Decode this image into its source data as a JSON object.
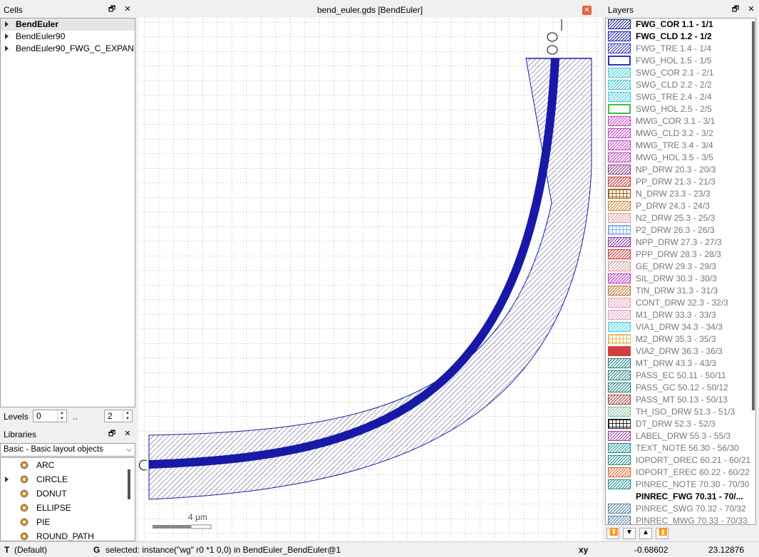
{
  "cells_panel": {
    "title": "Cells",
    "items": [
      {
        "label": "BendEuler",
        "selected": true
      },
      {
        "label": "BendEuler90",
        "selected": false
      },
      {
        "label": "BendEuler90_FWG_C_EXPAN...",
        "selected": false
      }
    ]
  },
  "levels": {
    "label": "Levels",
    "from": "0",
    "separator": "..",
    "to": "2"
  },
  "libraries_panel": {
    "title": "Libraries",
    "dropdown_value": "Basic - Basic layout objects",
    "items": [
      "ARC",
      "CIRCLE",
      "DONUT",
      "ELLIPSE",
      "PIE",
      "ROUND_PATH"
    ]
  },
  "canvas": {
    "title": "bend_euler.gds [BendEuler]",
    "scale_label": "4 μm",
    "accent_color": "#1a1aa6",
    "close_color": "#e8603c"
  },
  "layers_panel": {
    "title": "Layers",
    "layers": [
      {
        "label": "FWG_COR 1.1 - 1/1",
        "bold": true,
        "color": "#1a1a8c",
        "pattern": "diag"
      },
      {
        "label": "FWG_CLD 1.2 - 1/2",
        "bold": true,
        "color": "#2020b0",
        "pattern": "diag"
      },
      {
        "label": "FWG_TRE 1.4 - 1/4",
        "bold": false,
        "color": "#3a3ab0",
        "pattern": "diag"
      },
      {
        "label": "FWG_HOL 1.5 - 1/5",
        "bold": false,
        "color": "#3030c0",
        "pattern": "solid-light"
      },
      {
        "label": "SWG_COR 2.1 - 2/1",
        "bold": false,
        "color": "#40c8d8",
        "pattern": "diag"
      },
      {
        "label": "SWG_CLD 2.2 - 2/2",
        "bold": false,
        "color": "#40c8d8",
        "pattern": "diag"
      },
      {
        "label": "SWG_TRE 2.4 - 2/4",
        "bold": false,
        "color": "#40c8d8",
        "pattern": "diag"
      },
      {
        "label": "SWG_HOL 2.5 - 2/5",
        "bold": false,
        "color": "#40c040",
        "pattern": "solid-light"
      },
      {
        "label": "MWG_COR 3.1 - 3/1",
        "bold": false,
        "color": "#c040c0",
        "pattern": "diag"
      },
      {
        "label": "MWG_CLD 3.2 - 3/2",
        "bold": false,
        "color": "#c040c0",
        "pattern": "diag"
      },
      {
        "label": "MWG_TRE 3.4 - 3/4",
        "bold": false,
        "color": "#c040c0",
        "pattern": "diag"
      },
      {
        "label": "MWG_HOL 3.5 - 3/5",
        "bold": false,
        "color": "#c040c0",
        "pattern": "diag"
      },
      {
        "label": "NP_DRW 20.3 - 20/3",
        "bold": false,
        "color": "#8a3a8a",
        "pattern": "diag"
      },
      {
        "label": "PP_DRW 21.3 - 21/3",
        "bold": false,
        "color": "#c83030",
        "pattern": "diag"
      },
      {
        "label": "N_DRW 23.3 - 23/3",
        "bold": false,
        "color": "#9a6020",
        "pattern": "grid"
      },
      {
        "label": "P_DRW 24.3 - 24/3",
        "bold": false,
        "color": "#d08030",
        "pattern": "diag"
      },
      {
        "label": "N2_DRW 25.3 - 25/3",
        "bold": false,
        "color": "#d8a0a0",
        "pattern": "diag"
      },
      {
        "label": "P2_DRW 26.3 - 26/3",
        "bold": false,
        "color": "#80b0e0",
        "pattern": "grid"
      },
      {
        "label": "NPP_DRW 27.3 - 27/3",
        "bold": false,
        "color": "#8030a0",
        "pattern": "diag"
      },
      {
        "label": "PPP_DRW 28.3 - 28/3",
        "bold": false,
        "color": "#d03030",
        "pattern": "diag"
      },
      {
        "label": "GE_DRW 29.3 - 29/3",
        "bold": false,
        "color": "#d0a0a0",
        "pattern": "diag"
      },
      {
        "label": "SIL_DRW 30.3 - 30/3",
        "bold": false,
        "color": "#c030c0",
        "pattern": "diag"
      },
      {
        "label": "TIN_DRW 31.3 - 31/3",
        "bold": false,
        "color": "#c07030",
        "pattern": "diag"
      },
      {
        "label": "CONT_DRW 32.3 - 32/3",
        "bold": false,
        "color": "#e0a0b0",
        "pattern": "diag"
      },
      {
        "label": "M1_DRW 33.3 - 33/3",
        "bold": false,
        "color": "#e0a0c0",
        "pattern": "diag"
      },
      {
        "label": "VIA1_DRW 34.3 - 34/3",
        "bold": false,
        "color": "#40d0e0",
        "pattern": "diag"
      },
      {
        "label": "M2_DRW 35.3 - 35/3",
        "bold": false,
        "color": "#e0c060",
        "pattern": "grid"
      },
      {
        "label": "VIA2_DRW 36.3 - 36/3",
        "bold": false,
        "color": "#d04040",
        "pattern": "solid"
      },
      {
        "label": "MT_DRW 43.3 - 43/3",
        "bold": false,
        "color": "#208080",
        "pattern": "diag"
      },
      {
        "label": "PASS_EC 50.11 - 50/11",
        "bold": false,
        "color": "#208080",
        "pattern": "diag"
      },
      {
        "label": "PASS_GC 50.12 - 50/12",
        "bold": false,
        "color": "#208080",
        "pattern": "diag"
      },
      {
        "label": "PASS_MT 50.13 - 50/13",
        "bold": false,
        "color": "#a04040",
        "pattern": "diag"
      },
      {
        "label": "TH_ISO_DRW 51.3 - 51/3",
        "bold": false,
        "color": "#80c0a0",
        "pattern": "diag"
      },
      {
        "label": "DT_DRW 52.3 - 52/3",
        "bold": false,
        "color": "#202020",
        "pattern": "grid"
      },
      {
        "label": "LABEL_DRW 55.3 - 55/3",
        "bold": false,
        "color": "#a040a0",
        "pattern": "diag"
      },
      {
        "label": "TEXT_NOTE 56.30 - 56/30",
        "bold": false,
        "color": "#209090",
        "pattern": "diag"
      },
      {
        "label": "IOPORT_OREC 60.21 - 60/21",
        "bold": false,
        "color": "#209090",
        "pattern": "diag"
      },
      {
        "label": "IOPORT_EREC 60.22 - 60/22",
        "bold": false,
        "color": "#e06020",
        "pattern": "diag"
      },
      {
        "label": "PINREC_NOTE 70.30 - 70/30",
        "bold": false,
        "color": "#209090",
        "pattern": "diag"
      },
      {
        "label": "PINREC_FWG 70.31 - 70/...",
        "bold": true,
        "color": "#ffffff",
        "pattern": "none"
      },
      {
        "label": "PINREC_SWG 70.32 - 70/32",
        "bold": false,
        "color": "#5080a0",
        "pattern": "diag"
      },
      {
        "label": "PINREC_MWG 70.33 - 70/33",
        "bold": false,
        "color": "#5080a0",
        "pattern": "diag"
      }
    ]
  },
  "status_bar": {
    "key_t": "T",
    "mode": "(Default)",
    "key_g": "G",
    "message": "selected: instance(\"wg\" r0 *1 0,0) in BendEuler_BendEuler@1",
    "coord_label": "xy",
    "x": "-0.68602",
    "y": "23.12876"
  }
}
